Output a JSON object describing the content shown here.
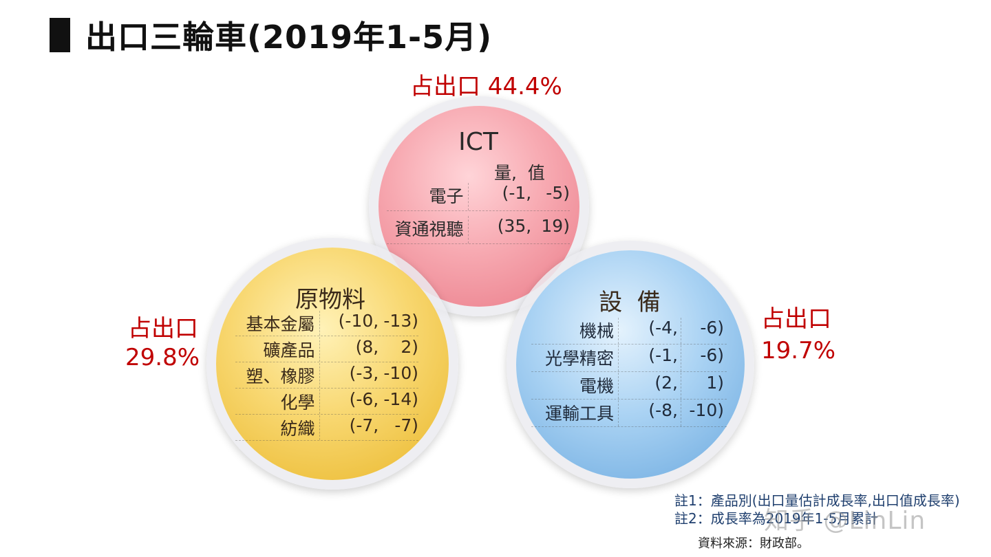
{
  "title": "出口三輪車(2019年1-5月)",
  "ict": {
    "share": "占出口 44.4%",
    "heading": "ICT",
    "subheading": "量,  值",
    "rows": [
      {
        "label": "電子",
        "v1": "(-1,",
        "v2": "-5)"
      },
      {
        "label": "資通視聽",
        "v1": "(35,",
        "v2": "19)"
      }
    ]
  },
  "materials": {
    "share_line1": "占出口",
    "share_line2": "29.8%",
    "heading": "原物料",
    "rows": [
      {
        "label": "基本金屬",
        "v1": "(-10,",
        "v2": "-13)"
      },
      {
        "label": "礦產品",
        "v1": "(8,",
        "v2": "2)"
      },
      {
        "label": "塑、橡膠",
        "v1": "(-3,",
        "v2": "-10)"
      },
      {
        "label": "化學",
        "v1": "(-6,",
        "v2": "-14)"
      },
      {
        "label": "紡織",
        "v1": "(-7,",
        "v2": "-7)"
      }
    ]
  },
  "equipment": {
    "share_line1": "占出口",
    "share_line2": "19.7%",
    "heading": "設  備",
    "rows": [
      {
        "label": "機械",
        "v1": "(-4,",
        "v2": "-6)"
      },
      {
        "label": "光學精密",
        "v1": "(-1,",
        "v2": "-6)"
      },
      {
        "label": "電機",
        "v1": "(2,",
        "v2": "1)"
      },
      {
        "label": "運輸工具",
        "v1": "(-8,",
        "v2": "-10)"
      }
    ]
  },
  "notes": {
    "note1": "註1：產品別(出口量估計成長率,出口值成長率)",
    "note2": "註2：成長率為2019年1-5月累計",
    "source": "資料來源：財政部。"
  },
  "watermark": "知乎 @LinLin",
  "colors": {
    "share": "#c00000",
    "ict": "#ef8d98",
    "materials": "#f2c949",
    "equipment": "#84bce8"
  }
}
